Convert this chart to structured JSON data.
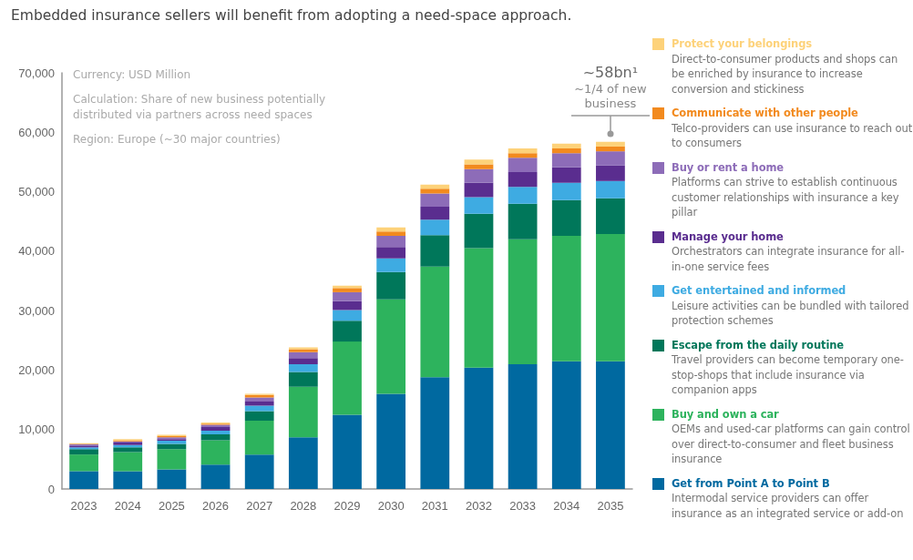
{
  "chart_data": {
    "type": "bar",
    "stacked": true,
    "title": "Embedded insurance sellers will benefit from adopting a need-space approach.",
    "categories": [
      "2023",
      "2024",
      "2025",
      "2026",
      "2027",
      "2028",
      "2029",
      "2030",
      "2031",
      "2032",
      "2033",
      "2034",
      "2035"
    ],
    "series": [
      {
        "name": "Get from Point A to Point B",
        "color": "#0069a0",
        "values": [
          3000,
          3000,
          3300,
          4100,
          5800,
          8700,
          12500,
          16000,
          18800,
          20400,
          21000,
          21500,
          21500
        ]
      },
      {
        "name": "Buy and own a car",
        "color": "#2db35d",
        "values": [
          2800,
          3200,
          3400,
          4100,
          5700,
          8500,
          12300,
          15900,
          18600,
          20100,
          21000,
          21100,
          21400
        ]
      },
      {
        "name": "Escape from the daily routine",
        "color": "#00775a",
        "values": [
          900,
          800,
          900,
          1000,
          1600,
          2500,
          3500,
          4600,
          5300,
          5800,
          6000,
          6000,
          6000
        ]
      },
      {
        "name": "Get entertained and informed",
        "color": "#3eabe2",
        "values": [
          300,
          400,
          500,
          600,
          900,
          1300,
          1800,
          2300,
          2600,
          2800,
          2800,
          2900,
          2900
        ]
      },
      {
        "name": "Manage your home",
        "color": "#5a2d8f",
        "values": [
          300,
          400,
          300,
          600,
          700,
          1000,
          1500,
          1900,
          2200,
          2400,
          2500,
          2600,
          2600
        ]
      },
      {
        "name": "Buy or rent a home",
        "color": "#8d6cb8",
        "values": [
          200,
          200,
          300,
          400,
          700,
          1000,
          1500,
          1900,
          2200,
          2300,
          2400,
          2400,
          2400
        ]
      },
      {
        "name": "Communicate with other people",
        "color": "#f28a1e",
        "values": [
          100,
          200,
          200,
          200,
          400,
          500,
          700,
          700,
          800,
          800,
          800,
          800,
          800
        ]
      },
      {
        "name": "Protect your belongings",
        "color": "#fdd27a",
        "values": [
          100,
          200,
          200,
          200,
          200,
          300,
          400,
          700,
          700,
          800,
          800,
          800,
          800
        ]
      }
    ],
    "ylim": [
      0,
      70000
    ],
    "yticks": [
      0,
      {
        "value": 10000,
        "label": "10,000"
      },
      {
        "value": 20000,
        "label": "20,000"
      },
      {
        "value": 30000,
        "label": "30,000"
      },
      {
        "value": 40000,
        "label": "40,000"
      },
      {
        "value": 50000,
        "label": "50,000"
      },
      {
        "value": 60000,
        "label": "60,000"
      },
      {
        "value": 70000,
        "label": "70,000"
      }
    ],
    "grid": false,
    "legend": "right",
    "annotations": [
      "~58bn¹",
      "~1/4 of new business",
      "Currency: USD Million",
      "Calculation: Share of new business potentially distributed via partners across need spaces",
      "Region: Europe (~30 major countries)",
      "Direct-to-consumer products and shops can be enriched by insurance to increase conversion and stickiness",
      "Telco-providers can use insurance to reach out to consumers",
      "Platforms can strive to establish continuous customer relationships with insurance a key pillar",
      "Orchestrators can integrate insurance for all-in-one service fees",
      "Leisure activities can be bundled with tailored protection schemes",
      "Travel providers can become temporary one-stop-shops that include insurance via companion apps",
      "OEMs and used-car platforms can gain control over direct-to-consumer and fleet business insurance",
      "Intermodal service providers can offer insurance as an integrated service or add-on"
    ]
  }
}
